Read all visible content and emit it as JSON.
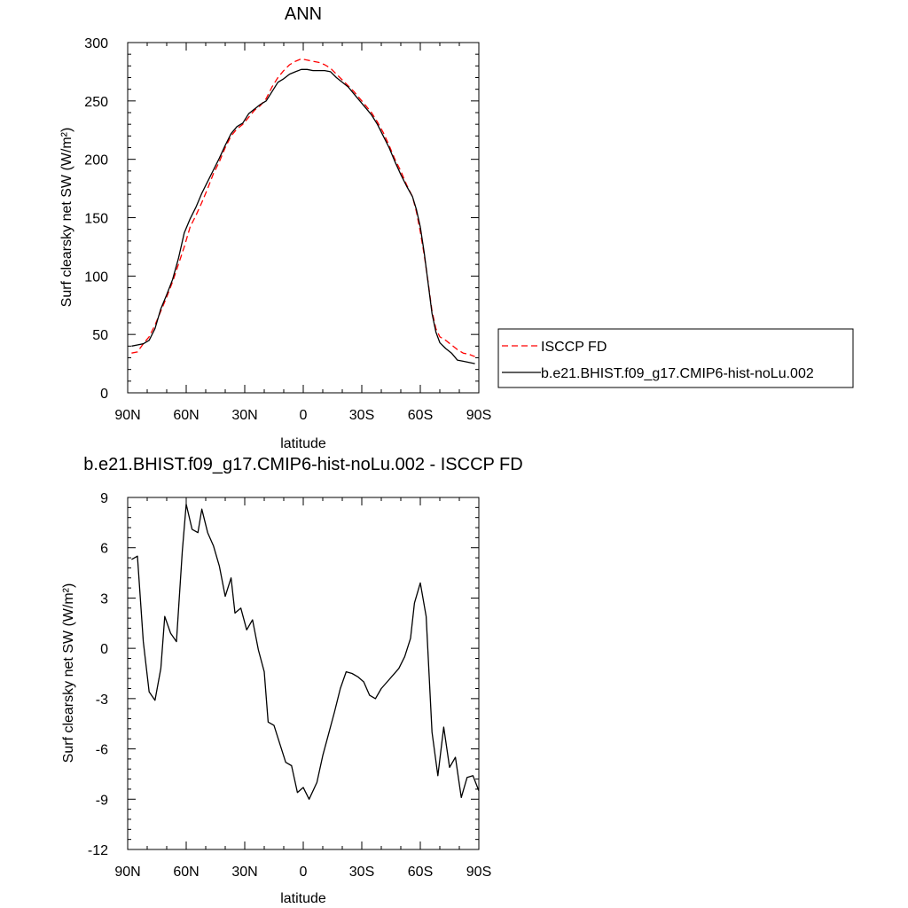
{
  "chart_data": [
    {
      "type": "line",
      "title": "ANN",
      "xlabel": "latitude",
      "ylabel": "Surf clearsky net SW (W/m²)",
      "xlim": [
        -90,
        90
      ],
      "ylim": [
        0,
        300
      ],
      "x_ticks": [
        {
          "value": -90,
          "label": "90N"
        },
        {
          "value": -60,
          "label": "60N"
        },
        {
          "value": -30,
          "label": "30N"
        },
        {
          "value": 0,
          "label": "0"
        },
        {
          "value": 30,
          "label": "30S"
        },
        {
          "value": 60,
          "label": "60S"
        },
        {
          "value": 90,
          "label": "90S"
        }
      ],
      "y_ticks": [
        {
          "value": 0,
          "label": "0"
        },
        {
          "value": 50,
          "label": "50"
        },
        {
          "value": 100,
          "label": "100"
        },
        {
          "value": 150,
          "label": "150"
        },
        {
          "value": 200,
          "label": "200"
        },
        {
          "value": 250,
          "label": "250"
        },
        {
          "value": 300,
          "label": "300"
        }
      ],
      "legend_position": "right",
      "series": [
        {
          "name": "ISCCP FD",
          "color": "#ff0000",
          "dash": "dashed",
          "points": [
            [
              -88,
              34
            ],
            [
              -85,
              35
            ],
            [
              -82,
              42
            ],
            [
              -79,
              48
            ],
            [
              -76,
              58
            ],
            [
              -73,
              70
            ],
            [
              -70,
              82
            ],
            [
              -67,
              95
            ],
            [
              -64,
              110
            ],
            [
              -61,
              125
            ],
            [
              -58,
              142
            ],
            [
              -55,
              152
            ],
            [
              -52,
              163
            ],
            [
              -49,
              175
            ],
            [
              -46,
              188
            ],
            [
              -43,
              198
            ],
            [
              -40,
              210
            ],
            [
              -37,
              220
            ],
            [
              -34,
              226
            ],
            [
              -31,
              230
            ],
            [
              -28,
              236
            ],
            [
              -25,
              242
            ],
            [
              -22,
              246
            ],
            [
              -19,
              252
            ],
            [
              -16,
              262
            ],
            [
              -13,
              270
            ],
            [
              -10,
              276
            ],
            [
              -7,
              281
            ],
            [
              -4,
              284
            ],
            [
              -1,
              286
            ],
            [
              2,
              285
            ],
            [
              5,
              284
            ],
            [
              8,
              283
            ],
            [
              11,
              281
            ],
            [
              14,
              278
            ],
            [
              17,
              273
            ],
            [
              20,
              268
            ],
            [
              23,
              263
            ],
            [
              26,
              258
            ],
            [
              29,
              252
            ],
            [
              32,
              246
            ],
            [
              35,
              240
            ],
            [
              38,
              232
            ],
            [
              41,
              223
            ],
            [
              44,
              212
            ],
            [
              47,
              200
            ],
            [
              50,
              190
            ],
            [
              53,
              178
            ],
            [
              56,
              168
            ],
            [
              58,
              155
            ],
            [
              60,
              138
            ],
            [
              62,
              118
            ],
            [
              64,
              95
            ],
            [
              66,
              70
            ],
            [
              68,
              55
            ],
            [
              70,
              48
            ],
            [
              73,
              45
            ],
            [
              76,
              41
            ],
            [
              79,
              37
            ],
            [
              82,
              34
            ],
            [
              85,
              33
            ],
            [
              88,
              31
            ]
          ]
        },
        {
          "name": "b.e21.BHIST.f09_g17.CMIP6-hist-noLu.002",
          "color": "#000000",
          "dash": "solid",
          "points": [
            [
              -88,
              40
            ],
            [
              -85,
              41
            ],
            [
              -82,
              42
            ],
            [
              -79,
              45
            ],
            [
              -76,
              55
            ],
            [
              -73,
              72
            ],
            [
              -70,
              84
            ],
            [
              -67,
              97
            ],
            [
              -64,
              115
            ],
            [
              -61,
              137
            ],
            [
              -58,
              149
            ],
            [
              -55,
              159
            ],
            [
              -52,
              171
            ],
            [
              -49,
              181
            ],
            [
              -46,
              191
            ],
            [
              -43,
              201
            ],
            [
              -40,
              212
            ],
            [
              -37,
              222
            ],
            [
              -34,
              228
            ],
            [
              -31,
              231
            ],
            [
              -28,
              239
            ],
            [
              -25,
              243
            ],
            [
              -22,
              247
            ],
            [
              -19,
              250
            ],
            [
              -16,
              258
            ],
            [
              -13,
              266
            ],
            [
              -10,
              269
            ],
            [
              -7,
              273
            ],
            [
              -4,
              275
            ],
            [
              -1,
              277
            ],
            [
              2,
              277
            ],
            [
              5,
              276
            ],
            [
              8,
              276
            ],
            [
              11,
              276
            ],
            [
              14,
              275
            ],
            [
              17,
              270
            ],
            [
              20,
              266
            ],
            [
              23,
              262
            ],
            [
              26,
              256
            ],
            [
              29,
              250
            ],
            [
              32,
              244
            ],
            [
              35,
              238
            ],
            [
              38,
              230
            ],
            [
              41,
              220
            ],
            [
              44,
              210
            ],
            [
              47,
              198
            ],
            [
              50,
              187
            ],
            [
              53,
              177
            ],
            [
              56,
              168
            ],
            [
              58,
              157
            ],
            [
              60,
              142
            ],
            [
              62,
              120
            ],
            [
              64,
              94
            ],
            [
              66,
              68
            ],
            [
              68,
              52
            ],
            [
              70,
              43
            ],
            [
              73,
              38
            ],
            [
              76,
              34
            ],
            [
              79,
              28
            ],
            [
              82,
              27
            ],
            [
              85,
              26
            ],
            [
              88,
              25
            ]
          ]
        }
      ]
    },
    {
      "type": "line",
      "title": "b.e21.BHIST.f09_g17.CMIP6-hist-noLu.002 - ISCCP FD",
      "xlabel": "latitude",
      "ylabel": "Surf clearsky net SW (W/m²)",
      "xlim": [
        -90,
        90
      ],
      "ylim": [
        -12,
        9
      ],
      "x_ticks": [
        {
          "value": -90,
          "label": "90N"
        },
        {
          "value": -60,
          "label": "60N"
        },
        {
          "value": -30,
          "label": "30N"
        },
        {
          "value": 0,
          "label": "0"
        },
        {
          "value": 30,
          "label": "30S"
        },
        {
          "value": 60,
          "label": "60S"
        },
        {
          "value": 90,
          "label": "90S"
        }
      ],
      "y_ticks": [
        {
          "value": -12,
          "label": "-12"
        },
        {
          "value": -9,
          "label": "-9"
        },
        {
          "value": -6,
          "label": "-6"
        },
        {
          "value": -3,
          "label": "-3"
        },
        {
          "value": 0,
          "label": "0"
        },
        {
          "value": 3,
          "label": "3"
        },
        {
          "value": 6,
          "label": "6"
        },
        {
          "value": 9,
          "label": "9"
        }
      ],
      "series": [
        {
          "color": "#000000",
          "dash": "solid",
          "points": [
            [
              -88,
              5.3
            ],
            [
              -85,
              5.5
            ],
            [
              -82,
              0.4
            ],
            [
              -79,
              -2.6
            ],
            [
              -76,
              -3.1
            ],
            [
              -73,
              -1.2
            ],
            [
              -71,
              1.9
            ],
            [
              -68,
              0.9
            ],
            [
              -65,
              0.4
            ],
            [
              -62,
              5.8
            ],
            [
              -60,
              8.6
            ],
            [
              -57,
              7.1
            ],
            [
              -54,
              6.9
            ],
            [
              -52,
              8.3
            ],
            [
              -49,
              6.9
            ],
            [
              -46,
              6.1
            ],
            [
              -43,
              4.9
            ],
            [
              -40,
              3.1
            ],
            [
              -37,
              4.2
            ],
            [
              -35,
              2.1
            ],
            [
              -32,
              2.4
            ],
            [
              -29,
              1.1
            ],
            [
              -26,
              1.7
            ],
            [
              -23,
              -0.1
            ],
            [
              -20,
              -1.4
            ],
            [
              -18,
              -4.4
            ],
            [
              -15,
              -4.6
            ],
            [
              -12,
              -5.7
            ],
            [
              -9,
              -6.8
            ],
            [
              -6,
              -7.0
            ],
            [
              -3,
              -8.6
            ],
            [
              0,
              -8.3
            ],
            [
              3,
              -9.0
            ],
            [
              7,
              -8.0
            ],
            [
              10,
              -6.4
            ],
            [
              13,
              -5.1
            ],
            [
              16,
              -3.8
            ],
            [
              19,
              -2.4
            ],
            [
              22,
              -1.4
            ],
            [
              25,
              -1.5
            ],
            [
              28,
              -1.7
            ],
            [
              31,
              -2.0
            ],
            [
              34,
              -2.8
            ],
            [
              37,
              -3.0
            ],
            [
              40,
              -2.4
            ],
            [
              43,
              -2.0
            ],
            [
              46,
              -1.6
            ],
            [
              49,
              -1.2
            ],
            [
              52,
              -0.5
            ],
            [
              55,
              0.6
            ],
            [
              57,
              2.7
            ],
            [
              60,
              3.9
            ],
            [
              63,
              1.9
            ],
            [
              66,
              -5.0
            ],
            [
              69,
              -7.6
            ],
            [
              72,
              -4.7
            ],
            [
              75,
              -7.1
            ],
            [
              78,
              -6.5
            ],
            [
              81,
              -8.9
            ],
            [
              84,
              -7.7
            ],
            [
              87,
              -7.6
            ],
            [
              90,
              -8.5
            ]
          ]
        }
      ]
    }
  ]
}
